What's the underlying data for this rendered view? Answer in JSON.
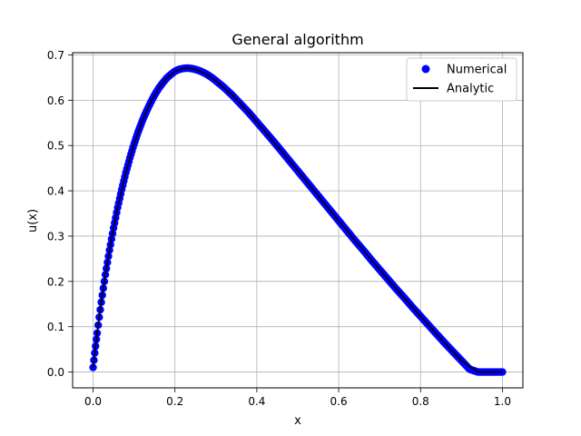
{
  "chart_data": {
    "type": "scatter",
    "title": "General algorithm",
    "xlabel": "x",
    "ylabel": "u(x)",
    "xlim": [
      -0.05,
      1.05
    ],
    "ylim": [
      -0.035,
      0.705
    ],
    "x_ticks": [
      0.0,
      0.2,
      0.4,
      0.6,
      0.8,
      1.0
    ],
    "x_tick_labels": [
      "0.0",
      "0.2",
      "0.4",
      "0.6",
      "0.8",
      "1.0"
    ],
    "y_ticks": [
      0.0,
      0.1,
      0.2,
      0.3,
      0.4,
      0.5,
      0.6,
      0.7
    ],
    "y_tick_labels": [
      "0.0",
      "0.1",
      "0.2",
      "0.3",
      "0.4",
      "0.5",
      "0.6",
      "0.7"
    ],
    "grid": true,
    "legend_position": "top-right",
    "series": [
      {
        "name": "Numerical",
        "style": "markers",
        "color": "#0000ff",
        "x": [
          0.0,
          0.002,
          0.004,
          0.006,
          0.008,
          0.01,
          0.015,
          0.02,
          0.025,
          0.03,
          0.04,
          0.05,
          0.06,
          0.07,
          0.08,
          0.09,
          0.1,
          0.11,
          0.12,
          0.13,
          0.14,
          0.15,
          0.16,
          0.17,
          0.18,
          0.19,
          0.2,
          0.21,
          0.22,
          0.23,
          0.24,
          0.25,
          0.26,
          0.27,
          0.28,
          0.29,
          0.3,
          0.32,
          0.34,
          0.36,
          0.38,
          0.4,
          0.42,
          0.44,
          0.46,
          0.48,
          0.5,
          0.52,
          0.54,
          0.56,
          0.58,
          0.6,
          0.62,
          0.64,
          0.66,
          0.68,
          0.7,
          0.72,
          0.74,
          0.76,
          0.78,
          0.8,
          0.82,
          0.84,
          0.86,
          0.88,
          0.9,
          0.92,
          0.94,
          0.96,
          0.98,
          1.0
        ],
        "y": [
          0.01,
          0.026,
          0.042,
          0.057,
          0.072,
          0.086,
          0.121,
          0.154,
          0.185,
          0.215,
          0.269,
          0.318,
          0.363,
          0.403,
          0.44,
          0.473,
          0.503,
          0.53,
          0.554,
          0.575,
          0.594,
          0.611,
          0.626,
          0.638,
          0.649,
          0.657,
          0.664,
          0.668,
          0.67,
          0.671,
          0.67,
          0.668,
          0.665,
          0.661,
          0.656,
          0.65,
          0.643,
          0.628,
          0.611,
          0.592,
          0.573,
          0.552,
          0.531,
          0.51,
          0.488,
          0.466,
          0.444,
          0.422,
          0.4,
          0.378,
          0.356,
          0.334,
          0.312,
          0.29,
          0.269,
          0.247,
          0.226,
          0.205,
          0.184,
          0.164,
          0.143,
          0.123,
          0.103,
          0.083,
          0.063,
          0.044,
          0.025,
          0.006,
          0.0,
          0.0,
          0.0,
          0.0
        ]
      },
      {
        "name": "Analytic",
        "style": "line",
        "color": "#000000",
        "x": [
          0.0,
          0.005,
          0.01,
          0.02,
          0.03,
          0.04,
          0.05,
          0.06,
          0.08,
          0.1,
          0.12,
          0.14,
          0.16,
          0.18,
          0.2,
          0.22,
          0.23,
          0.24,
          0.26,
          0.28,
          0.3,
          0.34,
          0.38,
          0.42,
          0.46,
          0.5,
          0.54,
          0.58,
          0.62,
          0.66,
          0.7,
          0.74,
          0.78,
          0.82,
          0.86,
          0.9,
          0.94,
          0.98,
          1.0
        ],
        "y": [
          0.01,
          0.05,
          0.086,
          0.154,
          0.215,
          0.269,
          0.318,
          0.363,
          0.44,
          0.503,
          0.554,
          0.594,
          0.626,
          0.649,
          0.664,
          0.67,
          0.671,
          0.67,
          0.665,
          0.656,
          0.643,
          0.611,
          0.573,
          0.531,
          0.488,
          0.444,
          0.4,
          0.356,
          0.312,
          0.269,
          0.226,
          0.184,
          0.143,
          0.103,
          0.063,
          0.025,
          0.0,
          0.0,
          0.0
        ]
      }
    ]
  }
}
